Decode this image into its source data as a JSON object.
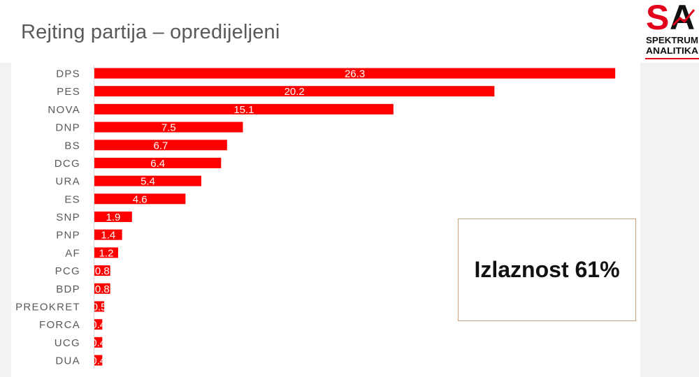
{
  "logo": {
    "letter_s": "S",
    "letter_a": "A",
    "line1": "SPEKTRUM",
    "line2": "ANALITIKA"
  },
  "turnout_box": {
    "label": "Izlaznost 61%"
  },
  "colors": {
    "bar": "#ff0000",
    "logo_red": "#e2001a",
    "logo_black": "#111111",
    "box_border": "#c9a27e",
    "label_text": "#595959",
    "title_text": "#595959",
    "background": "#f2f2f2"
  },
  "chart_data": {
    "type": "bar",
    "orientation": "horizontal",
    "title": "Rejting partija – opredijeljeni",
    "categories": [
      "DPS",
      "PES",
      "NOVA",
      "DNP",
      "BS",
      "DCG",
      "URA",
      "ES",
      "SNP",
      "PNP",
      "AF",
      "PCG",
      "BDP",
      "PREOKRET",
      "FORCA",
      "UCG",
      "DUA"
    ],
    "series": [
      {
        "values": [
          26.3,
          20.2,
          15.1,
          7.5,
          6.7,
          6.4,
          5.4,
          4.6,
          1.9,
          1.4,
          1.2,
          0.8,
          0.8,
          0.5,
          0.4,
          0.4,
          0.4
        ]
      }
    ],
    "data_labels": [
      "26.3",
      "20.2",
      "15.1",
      "7.5",
      "6.7",
      "6.4",
      "5.4",
      "4.6",
      "1.9",
      "1.4",
      "1.2",
      "0.8",
      "0.8",
      "0.5",
      "0.4",
      "0.4",
      "0.4"
    ],
    "xlim": [
      0,
      27
    ],
    "grid": false,
    "legend": "none"
  }
}
